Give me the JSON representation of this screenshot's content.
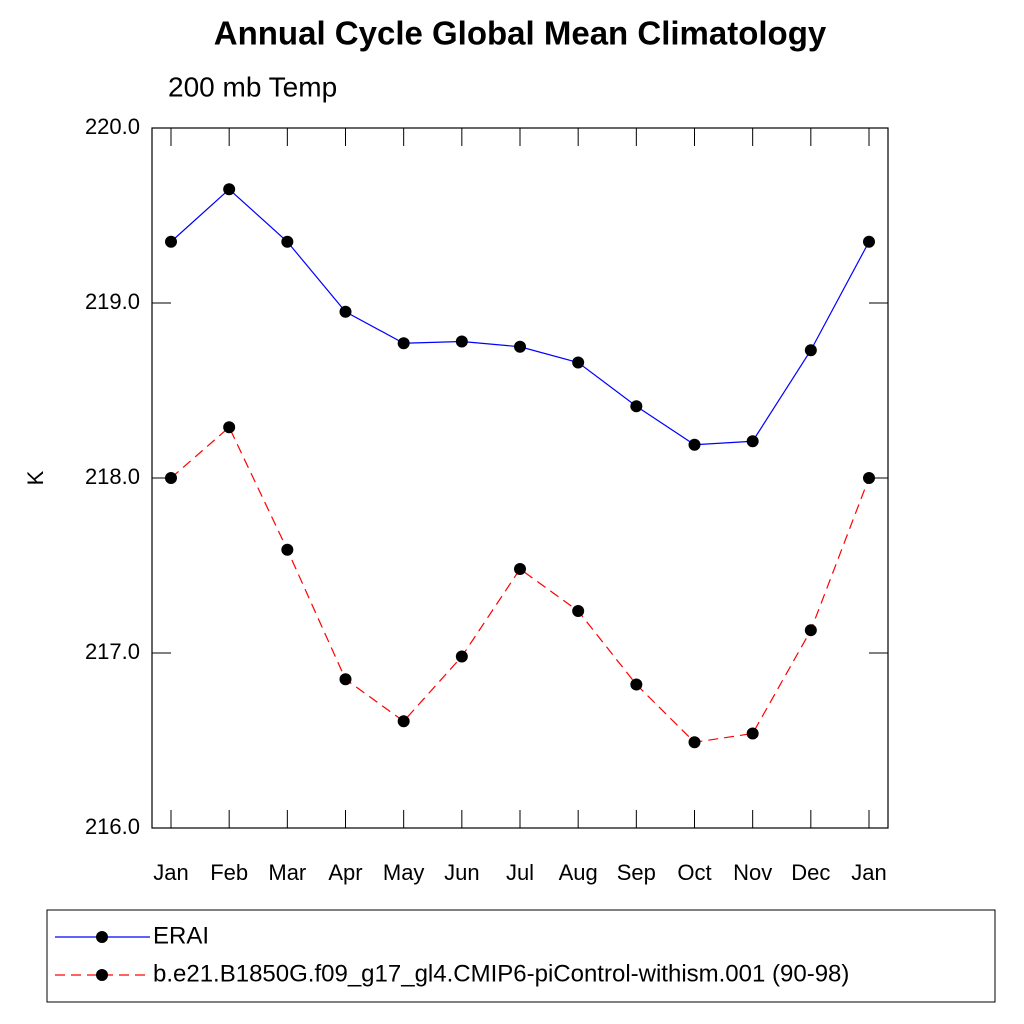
{
  "chart_data": {
    "type": "line",
    "title": "Annual Cycle Global Mean Climatology",
    "subtitle": "200 mb Temp",
    "y_label": "K",
    "categories": [
      "Jan",
      "Feb",
      "Mar",
      "Apr",
      "May",
      "Jun",
      "Jul",
      "Aug",
      "Sep",
      "Oct",
      "Nov",
      "Dec",
      "Jan"
    ],
    "series": [
      {
        "name": "ERAI",
        "color": "#0000ff",
        "line_style": "solid",
        "values": [
          219.35,
          219.65,
          219.35,
          218.95,
          218.77,
          218.78,
          218.75,
          218.66,
          218.41,
          218.19,
          218.21,
          218.73,
          219.35
        ]
      },
      {
        "name": "b.e21.B1850G.f09_g17_gl4.CMIP6-piControl-withism.001 (90-98)",
        "color": "#ff0000",
        "line_style": "dashed",
        "values": [
          218.0,
          218.29,
          217.59,
          216.85,
          216.61,
          216.98,
          217.48,
          217.24,
          216.82,
          216.49,
          216.54,
          217.13,
          218.0
        ]
      }
    ],
    "ylim": [
      216,
      220
    ],
    "yticks": [
      {
        "value": 216,
        "label": "216.0"
      },
      {
        "value": 217,
        "label": "217.0"
      },
      {
        "value": 218,
        "label": "218.0"
      },
      {
        "value": 219,
        "label": "219.0"
      },
      {
        "value": 220,
        "label": "220.0"
      }
    ],
    "grid": false,
    "legend_position": "bottom"
  }
}
